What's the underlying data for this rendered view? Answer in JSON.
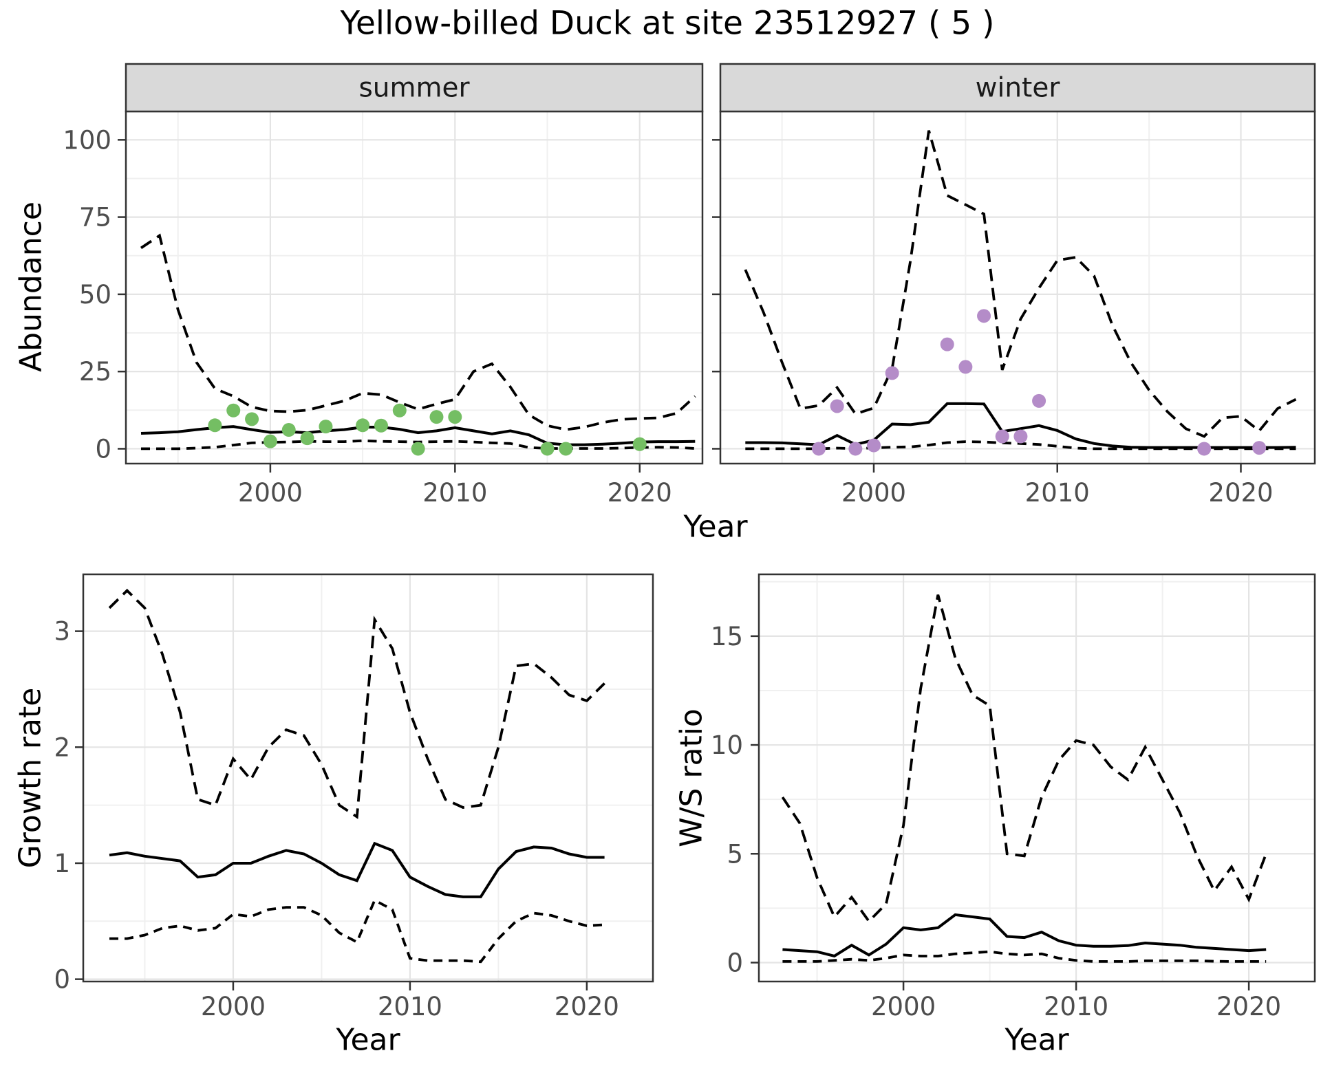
{
  "title": "Yellow-billed Duck at site 23512927 ( 5 )",
  "facets": [
    {
      "label": "summer"
    },
    {
      "label": "winter"
    }
  ],
  "axes": {
    "x_title": "Year",
    "y_title_abundance": "Abundance",
    "y_title_growth": "Growth rate",
    "y_title_ws": "W/S ratio"
  },
  "colors": {
    "summer_points": "#74BE63",
    "winter_points": "#B48CC8",
    "line": "#000000",
    "tick_text": "#4D4D4D",
    "strip_bg": "#D9D9D9",
    "panel_border": "#333333",
    "grid_major": "#E4E4E4",
    "grid_minor": "#F0F0F0"
  },
  "chart_data": [
    {
      "id": "abundance-summer",
      "type": "line",
      "title": "summer",
      "xlabel": "Year",
      "ylabel": "Abundance",
      "x": [
        1993,
        1994,
        1995,
        1996,
        1997,
        1998,
        1999,
        2000,
        2001,
        2002,
        2003,
        2004,
        2005,
        2006,
        2007,
        2008,
        2009,
        2010,
        2011,
        2012,
        2013,
        2014,
        2015,
        2016,
        2017,
        2018,
        2019,
        2020,
        2021,
        2022,
        2023
      ],
      "series": [
        {
          "name": "median",
          "style": "solid",
          "values": [
            5,
            5.2,
            5.5,
            6.2,
            6.8,
            7.2,
            6.2,
            5.3,
            5.5,
            5.2,
            5.8,
            6.2,
            7,
            7,
            6.3,
            5.2,
            5.8,
            6.8,
            5.8,
            4.8,
            5.8,
            4.5,
            1.8,
            1.3,
            1.3,
            1.5,
            1.8,
            2.2,
            2.3,
            2.3,
            2.4
          ]
        },
        {
          "name": "upper 95% CI",
          "style": "dashed",
          "values": [
            65,
            69,
            45,
            28,
            19.5,
            17,
            13.5,
            12.2,
            12,
            12.5,
            14,
            15.5,
            18,
            17.5,
            15,
            12.8,
            14.5,
            16,
            25,
            27.5,
            20,
            11,
            7.5,
            6.2,
            7,
            8.5,
            9.5,
            9.8,
            10,
            11.5,
            17
          ]
        },
        {
          "name": "lower 95% CI",
          "style": "dashed",
          "values": [
            0,
            0,
            0,
            0.2,
            0.5,
            1.2,
            1.9,
            2.1,
            2.2,
            2.4,
            2.3,
            2.3,
            2.6,
            2.4,
            2.3,
            2.2,
            2.3,
            2.4,
            2.2,
            1.9,
            1.7,
            0.4,
            0.1,
            0.1,
            0.1,
            0.1,
            0.2,
            0.4,
            0.5,
            0.4,
            0.1
          ]
        }
      ],
      "points": {
        "name": "observed counts",
        "color": "#74BE63",
        "xy": [
          [
            1997,
            7.6
          ],
          [
            1998,
            12.4
          ],
          [
            1999,
            9.6
          ],
          [
            2000,
            2.4
          ],
          [
            2001,
            6.1
          ],
          [
            2002,
            3.4
          ],
          [
            2003,
            7.2
          ],
          [
            2005,
            7.6
          ],
          [
            2006,
            7.5
          ],
          [
            2007,
            12.4
          ],
          [
            2008,
            0
          ],
          [
            2009,
            10.3
          ],
          [
            2010,
            10.3
          ],
          [
            2015,
            0
          ],
          [
            2016,
            0
          ],
          [
            2020,
            1.5
          ]
        ]
      },
      "xlim": [
        1992.18,
        2023.4
      ],
      "ylim": [
        -4.8,
        109.2
      ],
      "xticks": [
        2000,
        2010,
        2020
      ],
      "yticks": [
        0,
        25,
        50,
        75,
        100
      ],
      "grid": true,
      "legend": "none"
    },
    {
      "id": "abundance-winter",
      "type": "line",
      "title": "winter",
      "xlabel": "Year",
      "ylabel": "Abundance",
      "x": [
        1993,
        1994,
        1995,
        1996,
        1997,
        1998,
        1999,
        2000,
        2001,
        2002,
        2003,
        2004,
        2005,
        2006,
        2007,
        2008,
        2009,
        2010,
        2011,
        2012,
        2013,
        2014,
        2015,
        2016,
        2017,
        2018,
        2019,
        2020,
        2021,
        2022,
        2023
      ],
      "series": [
        {
          "name": "median",
          "style": "solid",
          "values": [
            2,
            2,
            1.9,
            1.6,
            1.3,
            4.3,
            1.4,
            2.8,
            8,
            7.8,
            8.6,
            14.6,
            14.6,
            14.5,
            5.6,
            6.5,
            7.5,
            5.9,
            3.2,
            1.7,
            0.9,
            0.5,
            0.4,
            0.4,
            0.4,
            0.4,
            0.4,
            0.4,
            0.4,
            0.4,
            0.5
          ]
        },
        {
          "name": "upper 95% CI",
          "style": "dashed",
          "values": [
            58,
            44,
            28,
            13,
            14,
            19.8,
            11.3,
            13.2,
            26,
            61,
            103,
            82,
            79,
            76,
            25.5,
            42,
            52,
            61,
            62,
            56,
            40,
            28,
            19,
            12,
            6.5,
            4,
            10,
            10.5,
            5.8,
            13,
            16
          ]
        },
        {
          "name": "lower 95% CI",
          "style": "dashed",
          "values": [
            0,
            0,
            0,
            0,
            0,
            0.2,
            0,
            0.3,
            0.5,
            0.6,
            1.2,
            2,
            2.3,
            2.2,
            1.9,
            1.7,
            1.4,
            0.8,
            0.2,
            0,
            0,
            0,
            0,
            0,
            0,
            0,
            0,
            0,
            0,
            0,
            0
          ]
        }
      ],
      "points": {
        "name": "observed counts",
        "color": "#B48CC8",
        "xy": [
          [
            1997,
            0
          ],
          [
            1998,
            13.8
          ],
          [
            1999,
            0
          ],
          [
            2000,
            1.1
          ],
          [
            2001,
            24.5
          ],
          [
            2004,
            33.8
          ],
          [
            2005,
            26.5
          ],
          [
            2006,
            43
          ],
          [
            2007,
            4
          ],
          [
            2008,
            4
          ],
          [
            2009,
            15.5
          ],
          [
            2018,
            0
          ],
          [
            2021,
            0.3
          ]
        ]
      },
      "xlim": [
        1991.64,
        2024.03
      ],
      "ylim": [
        -4.8,
        109.2
      ],
      "xticks": [
        2000,
        2010,
        2020
      ],
      "yticks": [
        0,
        25,
        50,
        75,
        100
      ],
      "grid": true,
      "legend": "none"
    },
    {
      "id": "growth-rate",
      "type": "line",
      "title": "",
      "xlabel": "Year",
      "ylabel": "Growth rate",
      "x": [
        1993,
        1994,
        1995,
        1996,
        1997,
        1998,
        1999,
        2000,
        2001,
        2002,
        2003,
        2004,
        2005,
        2006,
        2007,
        2008,
        2009,
        2010,
        2011,
        2012,
        2013,
        2014,
        2015,
        2016,
        2017,
        2018,
        2019,
        2020,
        2021
      ],
      "series": [
        {
          "name": "median",
          "style": "solid",
          "values": [
            1.07,
            1.09,
            1.06,
            1.04,
            1.02,
            0.88,
            0.9,
            1,
            1,
            1.06,
            1.11,
            1.08,
            1,
            0.9,
            0.85,
            1.17,
            1.11,
            0.88,
            0.8,
            0.73,
            0.71,
            0.71,
            0.95,
            1.1,
            1.14,
            1.13,
            1.08,
            1.05,
            1.05
          ]
        },
        {
          "name": "upper 95% CI",
          "style": "dashed",
          "values": [
            3.2,
            3.35,
            3.2,
            2.8,
            2.3,
            1.55,
            1.5,
            1.9,
            1.72,
            2,
            2.15,
            2.1,
            1.85,
            1.5,
            1.4,
            3.1,
            2.85,
            2.3,
            1.9,
            1.55,
            1.48,
            1.5,
            2,
            2.7,
            2.72,
            2.6,
            2.45,
            2.4,
            2.55
          ]
        },
        {
          "name": "lower 95% CI",
          "style": "dashed",
          "values": [
            0.35,
            0.35,
            0.38,
            0.44,
            0.46,
            0.42,
            0.44,
            0.56,
            0.54,
            0.6,
            0.62,
            0.62,
            0.55,
            0.4,
            0.32,
            0.68,
            0.6,
            0.18,
            0.16,
            0.16,
            0.16,
            0.15,
            0.35,
            0.5,
            0.57,
            0.55,
            0.5,
            0.46,
            0.47
          ]
        }
      ],
      "xlim": [
        1991.52,
        2023.74
      ],
      "ylim": [
        -0.02,
        3.49
      ],
      "xticks": [
        2000,
        2010,
        2020
      ],
      "yticks": [
        0,
        1,
        2,
        3
      ],
      "grid": true,
      "legend": "none"
    },
    {
      "id": "ws-ratio",
      "type": "line",
      "title": "",
      "xlabel": "Year",
      "ylabel": "W/S ratio",
      "x": [
        1993,
        1994,
        1995,
        1996,
        1997,
        1998,
        1999,
        2000,
        2001,
        2002,
        2003,
        2004,
        2005,
        2006,
        2007,
        2008,
        2009,
        2010,
        2011,
        2012,
        2013,
        2014,
        2015,
        2016,
        2017,
        2018,
        2019,
        2020,
        2021
      ],
      "series": [
        {
          "name": "median",
          "style": "solid",
          "values": [
            0.6,
            0.55,
            0.5,
            0.3,
            0.8,
            0.35,
            0.85,
            1.6,
            1.5,
            1.6,
            2.2,
            2.1,
            2,
            1.2,
            1.15,
            1.4,
            1,
            0.8,
            0.75,
            0.75,
            0.78,
            0.9,
            0.85,
            0.8,
            0.7,
            0.65,
            0.6,
            0.55,
            0.6
          ]
        },
        {
          "name": "upper 95% CI",
          "style": "dashed",
          "values": [
            7.6,
            6.4,
            3.9,
            2.1,
            3,
            1.9,
            2.7,
            6.3,
            12.6,
            16.9,
            14,
            12.3,
            11.8,
            5,
            4.9,
            7.6,
            9.3,
            10.2,
            10,
            9,
            8.4,
            9.9,
            8.4,
            6.9,
            4.9,
            3.3,
            4.4,
            2.9,
            5
          ]
        },
        {
          "name": "lower 95% CI",
          "style": "dashed",
          "values": [
            0.05,
            0.05,
            0.05,
            0.1,
            0.15,
            0.1,
            0.2,
            0.35,
            0.3,
            0.3,
            0.4,
            0.45,
            0.5,
            0.4,
            0.35,
            0.4,
            0.2,
            0.1,
            0.05,
            0.05,
            0.05,
            0.08,
            0.08,
            0.08,
            0.08,
            0.06,
            0.05,
            0.05,
            0.05
          ]
        }
      ],
      "xlim": [
        1991.63,
        2023.82
      ],
      "ylim": [
        -0.87,
        17.84
      ],
      "xticks": [
        2000,
        2010,
        2020
      ],
      "yticks": [
        0,
        5,
        10,
        15
      ],
      "grid": true,
      "legend": "none"
    }
  ]
}
